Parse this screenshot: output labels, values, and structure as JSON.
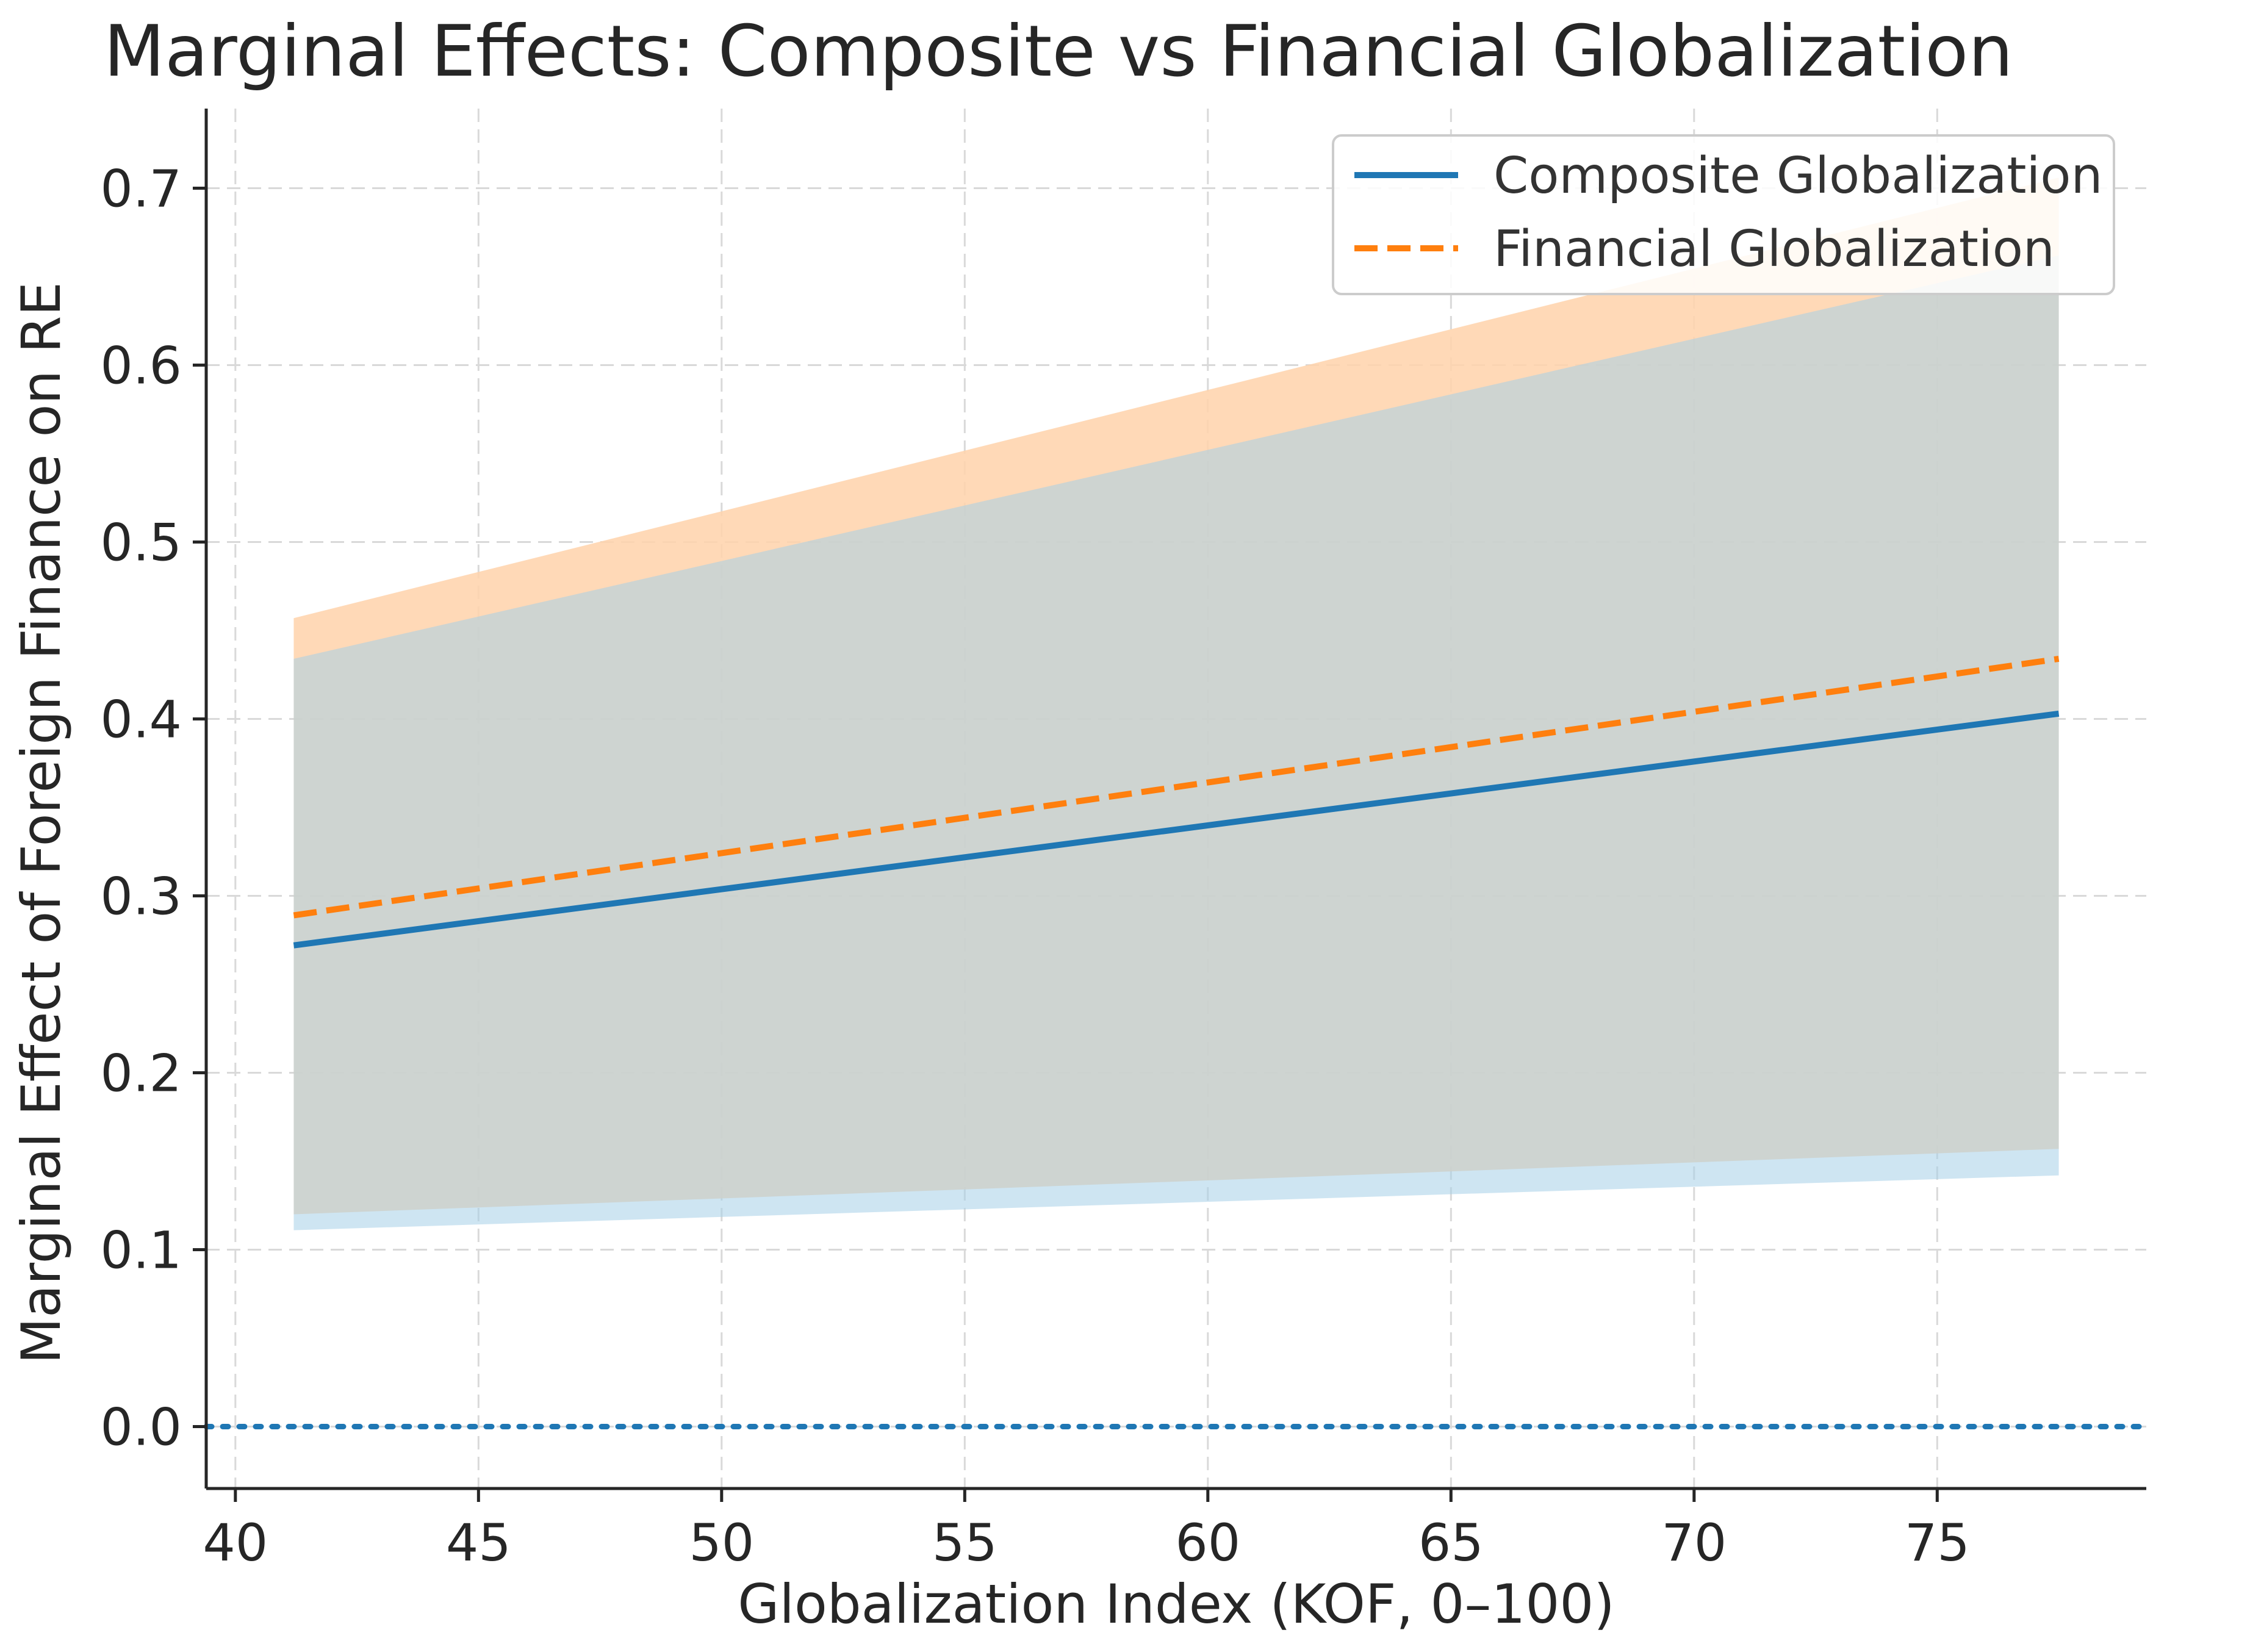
{
  "chart_data": {
    "type": "line",
    "title": "Marginal Effects: Composite vs Financial Globalization",
    "xlabel": "Globalization Index (KOF, 0–100)",
    "ylabel": "Marginal Effect of Foreign Finance on RE",
    "xlim": [
      39.4,
      79.3
    ],
    "ylim": [
      -0.035,
      0.745
    ],
    "xticks": [
      40,
      45,
      50,
      55,
      60,
      65,
      70,
      75
    ],
    "yticks": [
      0.0,
      0.1,
      0.2,
      0.3,
      0.4,
      0.5,
      0.6,
      0.7
    ],
    "xtick_labels": [
      "40",
      "45",
      "50",
      "55",
      "60",
      "65",
      "70",
      "75"
    ],
    "ytick_labels": [
      "0.0",
      "0.1",
      "0.2",
      "0.3",
      "0.4",
      "0.5",
      "0.6",
      "0.7"
    ],
    "grid": true,
    "legend_position": "top-right",
    "x": [
      41.2,
      77.5
    ],
    "series": [
      {
        "name": "Composite Globalization",
        "style": "solid",
        "color": "#1f77b4",
        "band_color": "#a6cfe8",
        "values": [
          0.272,
          0.403
        ],
        "ci_lower": [
          0.111,
          0.142
        ],
        "ci_upper": [
          0.434,
          0.662
        ]
      },
      {
        "name": "Financial Globalization",
        "style": "dashed",
        "color": "#ff7f0e",
        "band_color": "#ffd2aa",
        "values": [
          0.289,
          0.434
        ],
        "ci_lower": [
          0.12,
          0.157
        ],
        "ci_upper": [
          0.457,
          0.706
        ]
      }
    ],
    "reference_line": {
      "y": 0.0,
      "style": "dotted",
      "color": "#1f77b4"
    }
  }
}
